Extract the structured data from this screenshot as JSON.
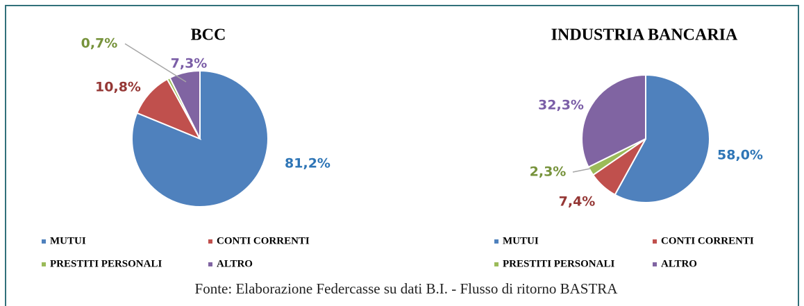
{
  "charts": [
    {
      "type": "pie",
      "title": "BCC",
      "categories": [
        "MUTUI",
        "CONTI CORRENTI",
        "PRESTITI PERSONALI",
        "ALTRO"
      ],
      "values": [
        81.2,
        10.8,
        0.7,
        7.3
      ],
      "value_labels": [
        "81,2%",
        "10,8%",
        "0,7%",
        "7,3%"
      ],
      "colors": [
        "#4f81bd",
        "#c0504d",
        "#9bbb59",
        "#8064a2"
      ],
      "legend": "bottom"
    },
    {
      "type": "pie",
      "title": "INDUSTRIA BANCARIA",
      "categories": [
        "MUTUI",
        "CONTI CORRENTI",
        "PRESTITI PERSONALI",
        "ALTRO"
      ],
      "values": [
        58.0,
        7.4,
        2.3,
        32.3
      ],
      "value_labels": [
        "58,0%",
        "7,4%",
        "2,3%",
        "32,3%"
      ],
      "colors": [
        "#4f81bd",
        "#c0504d",
        "#9bbb59",
        "#8064a2"
      ],
      "legend": "bottom"
    }
  ],
  "source": "Fonte: Elaborazione Federcasse su dati B.I. - Flusso di ritorno BASTRA"
}
